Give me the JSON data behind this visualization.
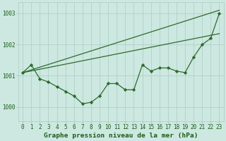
{
  "background_color": "#cce8e0",
  "line_color": "#2d6a2d",
  "grid_color": "#aaccc4",
  "xlabel": "Graphe pression niveau de la mer (hPa)",
  "xlabel_color": "#1a5c1a",
  "ylabel_ticks": [
    1000,
    1001,
    1002,
    1003
  ],
  "xlim": [
    -0.5,
    23.5
  ],
  "ylim": [
    999.55,
    1003.35
  ],
  "series": [
    {
      "x": [
        0,
        23
      ],
      "y": [
        1001.1,
        1003.1
      ],
      "style": "line_only",
      "lw": 0.9
    },
    {
      "x": [
        0,
        23
      ],
      "y": [
        1001.1,
        1002.35
      ],
      "style": "line_only",
      "lw": 0.9
    },
    {
      "x": [
        0,
        1,
        2,
        3,
        4,
        5,
        6,
        7,
        8,
        9,
        10,
        11,
        12,
        13,
        14,
        15,
        16,
        17,
        18,
        19,
        20,
        21,
        22,
        23
      ],
      "y": [
        1001.1,
        1001.35,
        1000.9,
        1000.8,
        1000.65,
        1000.5,
        1000.35,
        1000.1,
        1000.15,
        1000.35,
        1000.75,
        1000.75,
        1000.55,
        1000.55,
        1001.35,
        1001.15,
        1001.25,
        1001.25,
        1001.15,
        1001.1,
        1001.6,
        1002.0,
        1002.2,
        1003.0
      ],
      "style": "line_markers",
      "lw": 0.9
    }
  ],
  "xtick_labels": [
    "0",
    "1",
    "2",
    "3",
    "4",
    "5",
    "6",
    "7",
    "8",
    "9",
    "10",
    "11",
    "12",
    "13",
    "14",
    "15",
    "16",
    "17",
    "18",
    "19",
    "20",
    "21",
    "22",
    "23"
  ],
  "tick_fontsize": 5.5,
  "label_fontsize": 6.8
}
